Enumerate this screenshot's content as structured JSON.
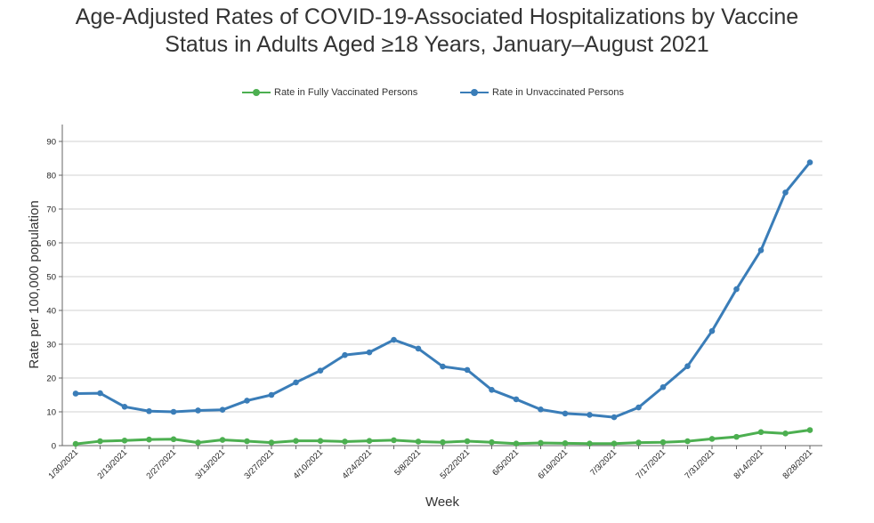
{
  "chart_data": {
    "type": "line",
    "title_line1": "Age-Adjusted Rates of COVID-19-Associated Hospitalizations by Vaccine",
    "title_line2": "Status in Adults Aged ≥18 Years, January–August 2021",
    "xlabel": "Week",
    "ylabel": "Rate per 100,000 population",
    "ylim": [
      0,
      95
    ],
    "yticks": [
      0,
      10,
      20,
      30,
      40,
      50,
      60,
      70,
      80,
      90
    ],
    "grid": "horizontal",
    "legend_position": "top",
    "categories": [
      "1/30/2021",
      "2/6/2021",
      "2/13/2021",
      "2/20/2021",
      "2/27/2021",
      "3/6/2021",
      "3/13/2021",
      "3/20/2021",
      "3/27/2021",
      "4/3/2021",
      "4/10/2021",
      "4/17/2021",
      "4/24/2021",
      "5/1/2021",
      "5/8/2021",
      "5/15/2021",
      "5/22/2021",
      "5/29/2021",
      "6/5/2021",
      "6/12/2021",
      "6/19/2021",
      "6/26/2021",
      "7/3/2021",
      "7/10/2021",
      "7/17/2021",
      "7/24/2021",
      "7/31/2021",
      "8/7/2021",
      "8/14/2021",
      "8/21/2021",
      "8/28/2021"
    ],
    "tick_labels": [
      "1/30/2021",
      "2/13/2021",
      "2/27/2021",
      "3/13/2021",
      "3/27/2021",
      "4/10/2021",
      "4/24/2021",
      "5/8/2021",
      "5/22/2021",
      "6/5/2021",
      "6/19/2021",
      "7/3/2021",
      "7/17/2021",
      "7/31/2021",
      "8/14/2021",
      "8/28/2021"
    ],
    "series": [
      {
        "name": "Rate in Fully Vaccinated Persons",
        "color": "#4caf50",
        "values": [
          0.5,
          1.3,
          1.5,
          1.8,
          1.9,
          0.9,
          1.7,
          1.3,
          0.9,
          1.4,
          1.4,
          1.2,
          1.4,
          1.6,
          1.2,
          1.0,
          1.3,
          1.0,
          0.6,
          0.8,
          0.7,
          0.6,
          0.6,
          0.9,
          1.0,
          1.3,
          2.0,
          2.6,
          4.0,
          3.6,
          4.6
        ]
      },
      {
        "name": "Rate in Unvaccinated Persons",
        "color": "#3a7db8",
        "values": [
          15.4,
          15.5,
          11.5,
          10.2,
          10.0,
          10.4,
          10.6,
          13.3,
          15.0,
          18.7,
          22.2,
          26.8,
          27.6,
          31.3,
          28.7,
          23.4,
          22.4,
          16.5,
          13.7,
          10.7,
          9.5,
          9.1,
          8.4,
          11.3,
          17.3,
          23.5,
          33.9,
          46.3,
          57.8,
          74.9,
          83.8
        ]
      }
    ]
  }
}
